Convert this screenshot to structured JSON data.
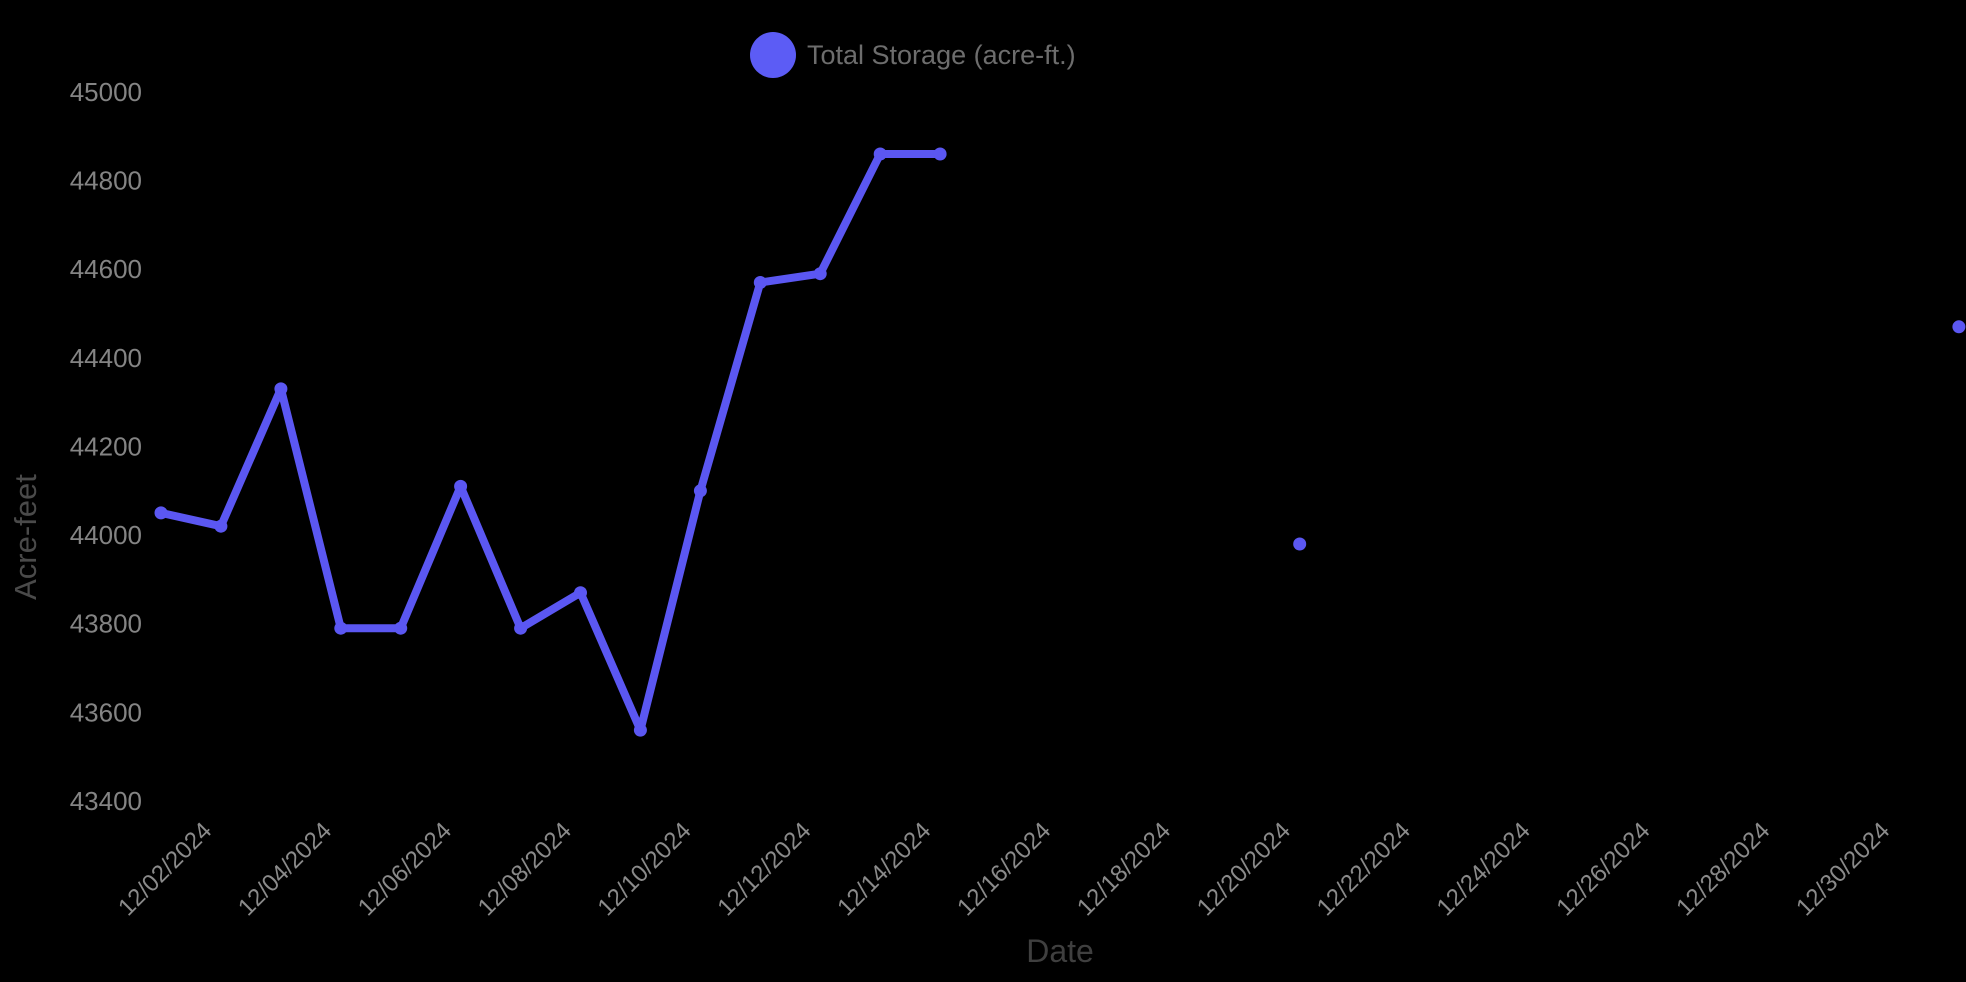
{
  "chart_data": {
    "type": "line",
    "legend_label": "Total Storage (acre-ft.)",
    "xlabel": "Date",
    "ylabel": "Acre-feet",
    "ylim": [
      43400,
      45000
    ],
    "grid": false,
    "legend_position": "top-center",
    "y_ticks": [
      45000,
      44800,
      44600,
      44400,
      44200,
      44000,
      43800,
      43600,
      43400
    ],
    "x_ticks": [
      "12/02/2024",
      "12/04/2024",
      "12/06/2024",
      "12/08/2024",
      "12/10/2024",
      "12/12/2024",
      "12/14/2024",
      "12/16/2024",
      "12/18/2024",
      "12/20/2024",
      "12/22/2024",
      "12/24/2024",
      "12/26/2024",
      "12/28/2024",
      "12/30/2024"
    ],
    "series": [
      {
        "name": "Total Storage (acre-ft.)",
        "points": [
          {
            "date": "12/01/2024",
            "value": 44050
          },
          {
            "date": "12/02/2024",
            "value": 44020
          },
          {
            "date": "12/03/2024",
            "value": 44330
          },
          {
            "date": "12/04/2024",
            "value": 43790
          },
          {
            "date": "12/05/2024",
            "value": 43790
          },
          {
            "date": "12/06/2024",
            "value": 44110
          },
          {
            "date": "12/07/2024",
            "value": 43790
          },
          {
            "date": "12/08/2024",
            "value": 43870
          },
          {
            "date": "12/09/2024",
            "value": 43560
          },
          {
            "date": "12/10/2024",
            "value": 44100
          },
          {
            "date": "12/11/2024",
            "value": 44570
          },
          {
            "date": "12/12/2024",
            "value": 44590
          },
          {
            "date": "12/13/2024",
            "value": 44860
          },
          {
            "date": "12/14/2024",
            "value": 44860
          },
          {
            "date": "12/20/2024",
            "value": 43980
          },
          {
            "date": "12/31/2024",
            "value": 44470
          }
        ]
      }
    ],
    "colors": {
      "background": "#000000",
      "line": "#5b57f2",
      "point": "#5b57f2",
      "legend_dot": "#5c5cf5",
      "tick_text": "#848484",
      "axis_title_text": "#4a4a4a",
      "legend_text": "#6d6d6d"
    }
  }
}
